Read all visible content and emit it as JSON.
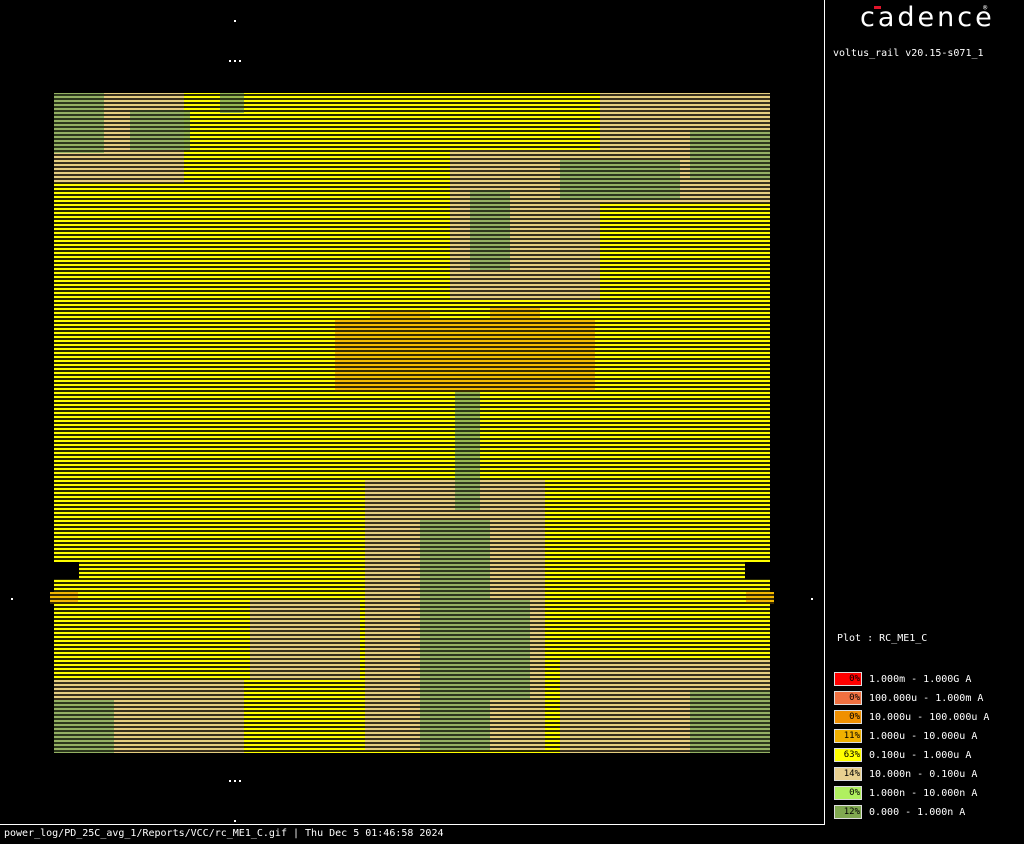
{
  "plot_image": {
    "description_colors": {
      "background": "#000000",
      "base_fill": "#eedc00",
      "stripe": "#ffff00",
      "tan_region": "#d8c08a",
      "green_region": "#7aa35a",
      "orange_region": "#f0b000"
    }
  },
  "side_panel": {
    "logo_text": "cadence",
    "logo_accent_color": "#e0152b",
    "version": "voltus_rail v20.15-s071_1",
    "plot_label": "Plot : RC_ME1_C",
    "legend": [
      {
        "percent": "0%",
        "range": "1.000m - 1.000G A",
        "color": "#ff0000"
      },
      {
        "percent": "0%",
        "range": "100.000u - 1.000m A",
        "color": "#f07040"
      },
      {
        "percent": "0%",
        "range": "10.000u - 100.000u A",
        "color": "#f09000"
      },
      {
        "percent": "11%",
        "range": "1.000u - 10.000u A",
        "color": "#f0b000"
      },
      {
        "percent": "63%",
        "range": "0.100u - 1.000u A",
        "color": "#ffff00"
      },
      {
        "percent": "14%",
        "range": "10.000n - 0.100u A",
        "color": "#e8d090"
      },
      {
        "percent": "0%",
        "range": "1.000n - 10.000n A",
        "color": "#b0f060"
      },
      {
        "percent": "12%",
        "range": "0.000 - 1.000n A",
        "color": "#80a850"
      }
    ]
  },
  "footer": {
    "text": "power_log/PD_25C_avg_1/Reports/VCC/rc_ME1_C.gif | Thu Dec  5 01:46:58 2024"
  }
}
